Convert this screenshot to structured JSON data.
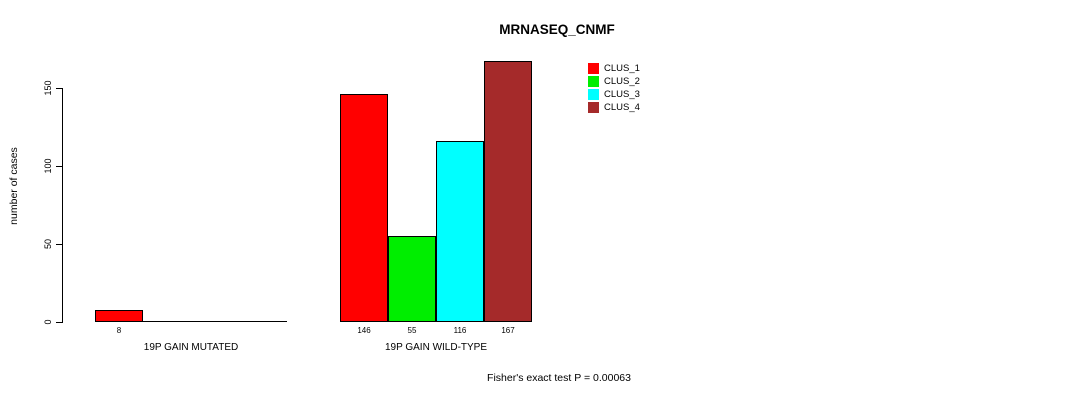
{
  "title": "MRNASEQ_CNMF",
  "chart_data": {
    "type": "bar",
    "title": "MRNASEQ_CNMF",
    "ylabel": "number of cases",
    "xlabel": "",
    "yticks": [
      0,
      50,
      100,
      150
    ],
    "ylim": [
      0,
      167
    ],
    "grid": false,
    "legend_position": "top-right",
    "series": [
      {
        "name": "CLUS_1",
        "color": "#FF0000"
      },
      {
        "name": "CLUS_2",
        "color": "#00EE00"
      },
      {
        "name": "CLUS_3",
        "color": "#00FFFF"
      },
      {
        "name": "CLUS_4",
        "color": "#A52A2A"
      }
    ],
    "groups": [
      {
        "label": "19P GAIN MUTATED",
        "values": [
          8,
          0,
          0,
          0
        ]
      },
      {
        "label": "19P GAIN WILD-TYPE",
        "values": [
          146,
          55,
          116,
          167
        ]
      }
    ],
    "bar_value_labels": [
      [
        8
      ],
      [
        146,
        55,
        116,
        167
      ]
    ],
    "annotation": "Fisher's exact test P = 0.00063"
  }
}
